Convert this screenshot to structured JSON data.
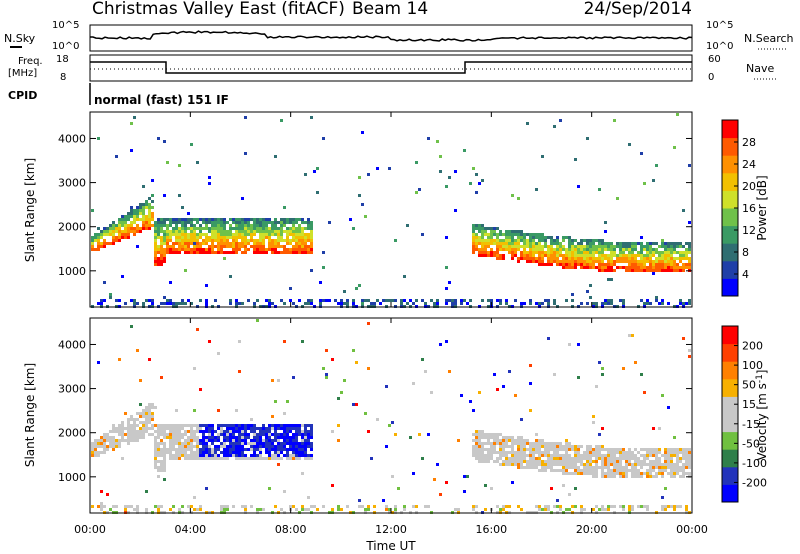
{
  "header": {
    "title": "Christmas Valley East (fitACF)",
    "beam": "Beam 14",
    "date": "24/Sep/2014"
  },
  "top_panel": {
    "noise_left_label": "N.Sky",
    "noise_right_label": "N.Search",
    "noise_ticks": [
      "10^5",
      "10^0"
    ],
    "freq_label_1": "Freq.",
    "freq_label_2": "[MHz]",
    "freq_ticks": [
      "18",
      "8"
    ],
    "nave_label": "Nave",
    "nave_ticks": [
      "60",
      "0"
    ],
    "cpid_label": "CPID",
    "cpid_text": "normal (fast) 151 IF"
  },
  "chart_data": [
    {
      "type": "heatmap",
      "title": "",
      "xlabel": "Time UT",
      "ylabel": "Slant Range [km]",
      "xlim": [
        "00:00",
        "24:00"
      ],
      "ylim": [
        180,
        4600
      ],
      "x_ticks": [
        "00:00",
        "04:00",
        "08:00",
        "12:00",
        "16:00",
        "20:00",
        "00:00"
      ],
      "y_ticks": [
        1000,
        2000,
        3000,
        4000
      ],
      "colorbar": {
        "label": "Power [dB]",
        "ticks": [
          4,
          8,
          12,
          16,
          20,
          24,
          28
        ]
      }
    },
    {
      "type": "heatmap",
      "title": "",
      "xlabel": "Time UT",
      "ylabel": "Slant Range [km]",
      "xlim": [
        "00:00",
        "24:00"
      ],
      "ylim": [
        180,
        4600
      ],
      "x_ticks": [
        "00:00",
        "04:00",
        "08:00",
        "12:00",
        "16:00",
        "20:00",
        "00:00"
      ],
      "y_ticks": [
        1000,
        2000,
        3000,
        4000
      ],
      "colorbar": {
        "label": "Velocity [m s^-1]",
        "ticks": [
          200,
          100,
          50,
          15,
          -15,
          -50,
          -100,
          -200
        ]
      }
    }
  ]
}
